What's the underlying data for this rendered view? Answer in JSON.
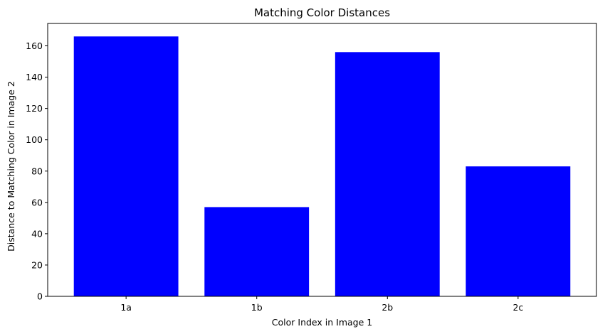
{
  "chart_data": {
    "type": "bar",
    "title": "Matching Color Distances",
    "xlabel": "Color Index in Image 1",
    "ylabel": "Distance to Matching Color in Image 2",
    "categories": [
      "1a",
      "1b",
      "2b",
      "2c"
    ],
    "values": [
      166,
      57,
      156,
      83
    ],
    "ylim": [
      0,
      174.3
    ],
    "yticks": [
      0,
      20,
      40,
      60,
      80,
      100,
      120,
      140,
      160
    ],
    "grid": false,
    "bar_color": "#0000ff"
  }
}
